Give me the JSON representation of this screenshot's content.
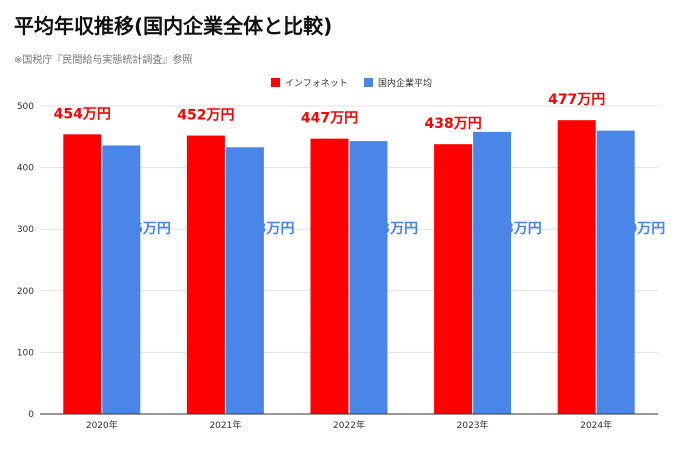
{
  "title": "平均年収推移(国内企業全体と比較)",
  "subtitle": "※国税庁『民間給与実態統計調査』参照",
  "colors": {
    "series1": "#ff0000",
    "series2": "#4a86e8",
    "grid": "#e0e0e0",
    "axis": "#333333"
  },
  "chart_data": {
    "type": "bar",
    "categories": [
      "2020年",
      "2021年",
      "2022年",
      "2023年",
      "2024年"
    ],
    "series": [
      {
        "name": "インフォネット",
        "values": [
          454,
          452,
          447,
          438,
          477
        ],
        "labels": [
          "454万円",
          "452万円",
          "447万円",
          "438万円",
          "477万円"
        ]
      },
      {
        "name": "国内企業平均",
        "values": [
          436,
          433,
          443,
          458,
          460
        ],
        "labels": [
          "436万円",
          "433万円",
          "443万円",
          "458万円",
          "460万円"
        ]
      }
    ],
    "ylim": [
      0,
      500
    ],
    "yticks": [
      0,
      100,
      200,
      300,
      400,
      500
    ],
    "grid": true,
    "legend": "top-center"
  }
}
